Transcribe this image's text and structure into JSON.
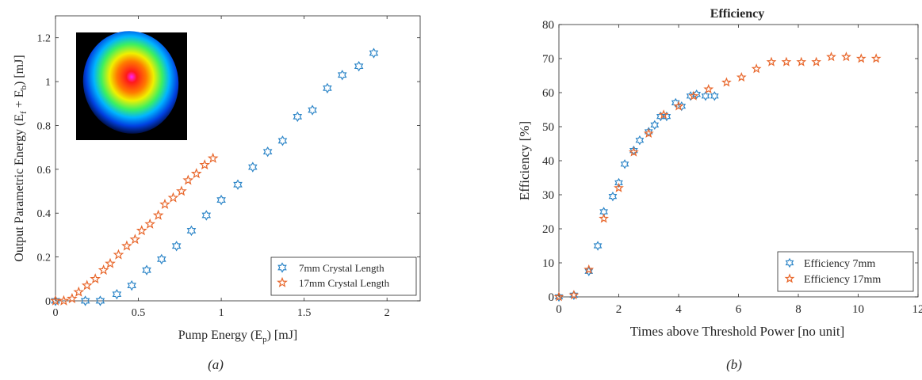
{
  "figure": {
    "captions": [
      "(a)",
      "(b)"
    ]
  },
  "chart_data": [
    {
      "type": "scatter",
      "title": "",
      "xlabel": "Pump Energy (E",
      "xlabel_sub": "p",
      "xlabel_tail": ")  [mJ]",
      "ylabel": "Output Parametric Energy (E",
      "ylabel_sub1": "f",
      "ylabel_mid": " + E",
      "ylabel_sub2": "b",
      "ylabel_tail": ")  [mJ]",
      "xlim": [
        0,
        2.2
      ],
      "ylim": [
        0,
        1.3
      ],
      "xticks": [
        0,
        0.5,
        1,
        1.5,
        2
      ],
      "yticks": [
        0,
        0.2,
        0.4,
        0.6,
        0.8,
        1,
        1.2
      ],
      "grid": false,
      "legend_position": "bottom-right",
      "inset": "beam-profile-heatmap",
      "series": [
        {
          "name": "7mm Crystal Length",
          "marker": "hexagram",
          "color": "#2E86C8",
          "x": [
            0,
            0.18,
            0.27,
            0.37,
            0.46,
            0.55,
            0.64,
            0.73,
            0.82,
            0.91,
            1.0,
            1.1,
            1.19,
            1.28,
            1.37,
            1.46,
            1.55,
            1.64,
            1.73,
            1.83,
            1.92
          ],
          "y": [
            0,
            0,
            0,
            0.03,
            0.07,
            0.14,
            0.19,
            0.25,
            0.32,
            0.39,
            0.46,
            0.53,
            0.61,
            0.68,
            0.73,
            0.84,
            0.87,
            0.97,
            1.03,
            1.07,
            1.13
          ]
        },
        {
          "name": "17mm Crystal Length",
          "marker": "star",
          "color": "#E8662A",
          "x": [
            0,
            0.05,
            0.1,
            0.14,
            0.19,
            0.24,
            0.29,
            0.33,
            0.38,
            0.43,
            0.48,
            0.52,
            0.57,
            0.62,
            0.66,
            0.71,
            0.76,
            0.8,
            0.85,
            0.9,
            0.95
          ],
          "y": [
            0,
            0,
            0.01,
            0.04,
            0.07,
            0.1,
            0.14,
            0.17,
            0.21,
            0.25,
            0.28,
            0.32,
            0.35,
            0.39,
            0.44,
            0.47,
            0.5,
            0.55,
            0.58,
            0.62,
            0.65
          ]
        }
      ]
    },
    {
      "type": "scatter",
      "title": "Efficiency",
      "xlabel": "Times above Threshold Power [no unit]",
      "ylabel": "Efficiency  [%]",
      "xlim": [
        0,
        12
      ],
      "ylim": [
        0,
        80
      ],
      "xticks": [
        0,
        2,
        4,
        6,
        8,
        10,
        12
      ],
      "yticks": [
        0,
        10,
        20,
        30,
        40,
        50,
        60,
        70,
        80
      ],
      "grid": false,
      "legend_position": "bottom-right",
      "series": [
        {
          "name": "Efficiency 7mm",
          "marker": "hexagram",
          "color": "#2E86C8",
          "x": [
            0,
            0.5,
            1.0,
            1.3,
            1.5,
            1.8,
            2.0,
            2.2,
            2.5,
            2.7,
            3.0,
            3.2,
            3.4,
            3.6,
            3.9,
            4.1,
            4.4,
            4.6,
            4.9,
            5.2
          ],
          "y": [
            0,
            0.5,
            7.5,
            15,
            25,
            29.5,
            33.5,
            39,
            43,
            46,
            48.5,
            50.5,
            53,
            53,
            57,
            56,
            59,
            59.5,
            59,
            59
          ]
        },
        {
          "name": "Efficiency 17mm",
          "marker": "star",
          "color": "#E8662A",
          "x": [
            0,
            0.5,
            1.0,
            1.5,
            2.0,
            2.5,
            3.0,
            3.5,
            4.0,
            4.5,
            5.0,
            5.6,
            6.1,
            6.6,
            7.1,
            7.6,
            8.1,
            8.6,
            9.1,
            9.6,
            10.1,
            10.6
          ],
          "y": [
            0,
            0.5,
            8,
            23,
            32,
            42.5,
            48,
            53.5,
            56,
            59,
            61,
            63,
            64.5,
            67,
            69,
            69,
            69,
            69,
            70.5,
            70.5,
            70,
            70
          ]
        }
      ]
    }
  ]
}
